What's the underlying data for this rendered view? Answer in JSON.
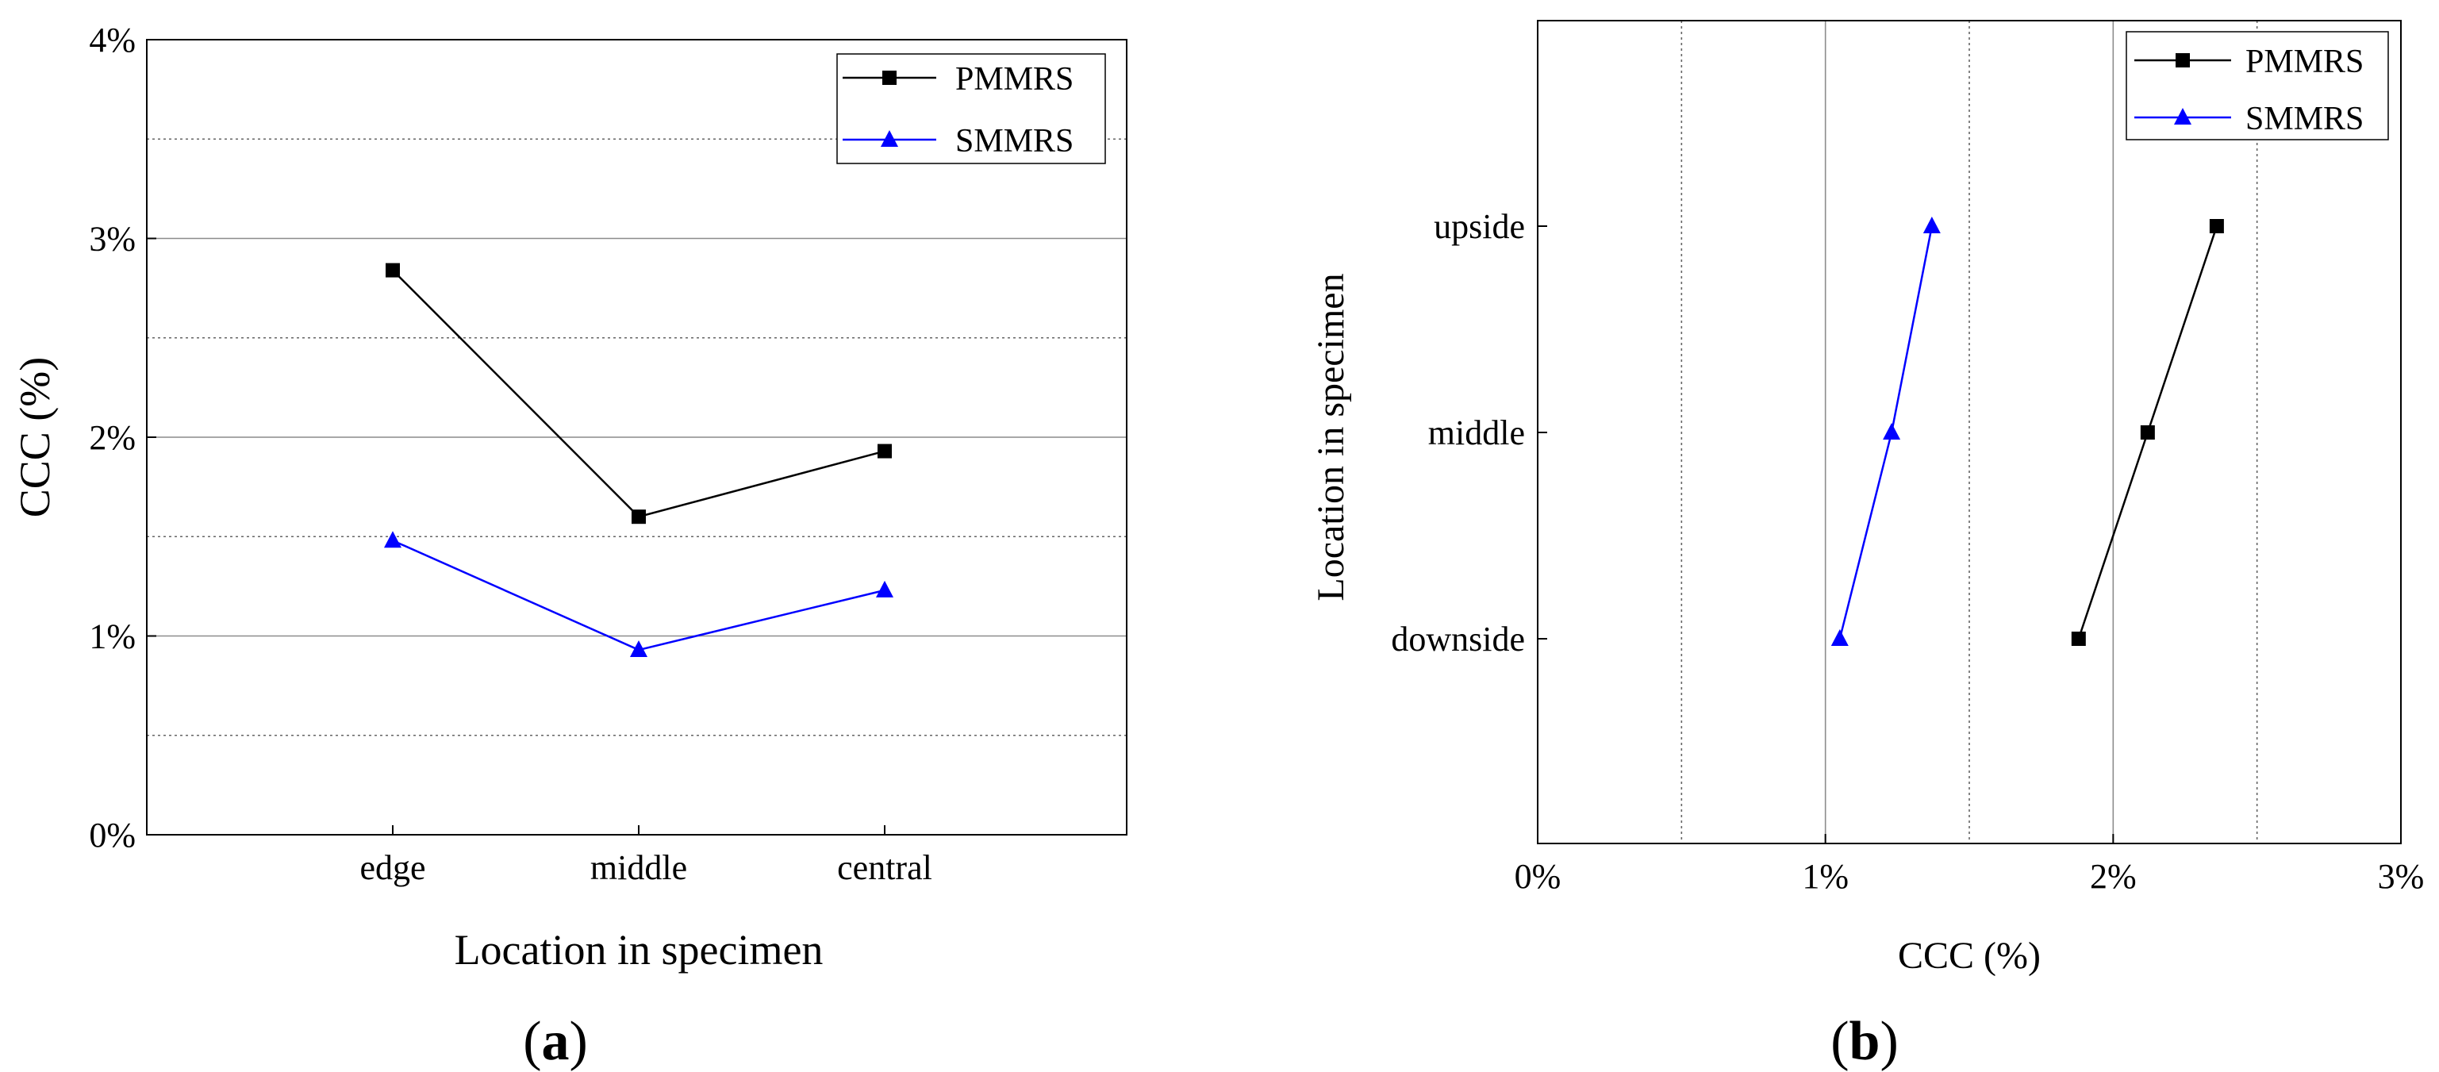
{
  "chart_data": [
    {
      "type": "line",
      "panel_label": "a",
      "title": "",
      "xlabel": "Location in specimen",
      "ylabel": "CCC (%)",
      "categories": [
        "edge",
        "middle",
        "central"
      ],
      "ylim": [
        0,
        4
      ],
      "yticks": [
        0,
        1,
        2,
        3,
        4
      ],
      "ytick_labels": [
        "0%",
        "1%",
        "2%",
        "3%",
        "4%"
      ],
      "grid": "horizontal",
      "legend_position": "top-right",
      "series": [
        {
          "name": "PMMRS",
          "color": "#000000",
          "marker": "square",
          "values": [
            2.84,
            1.6,
            1.93
          ]
        },
        {
          "name": "SMMRS",
          "color": "#0000ff",
          "marker": "triangle",
          "values": [
            1.48,
            0.93,
            1.23
          ]
        }
      ]
    },
    {
      "type": "line",
      "panel_label": "b",
      "title": "",
      "xlabel": "CCC (%)",
      "ylabel": "Location in specimen",
      "categories": [
        "downside",
        "middle",
        "upside"
      ],
      "orientation": "horizontal",
      "xlim": [
        0,
        3
      ],
      "xticks": [
        0,
        1,
        2,
        3
      ],
      "xtick_labels": [
        "0%",
        "1%",
        "2%",
        "3%"
      ],
      "grid": "vertical",
      "legend_position": "top-right",
      "series": [
        {
          "name": "PMMRS",
          "color": "#000000",
          "marker": "square",
          "values": [
            1.88,
            2.12,
            2.36
          ]
        },
        {
          "name": "SMMRS",
          "color": "#0000ff",
          "marker": "triangle",
          "values": [
            1.05,
            1.23,
            1.37
          ]
        }
      ]
    }
  ]
}
